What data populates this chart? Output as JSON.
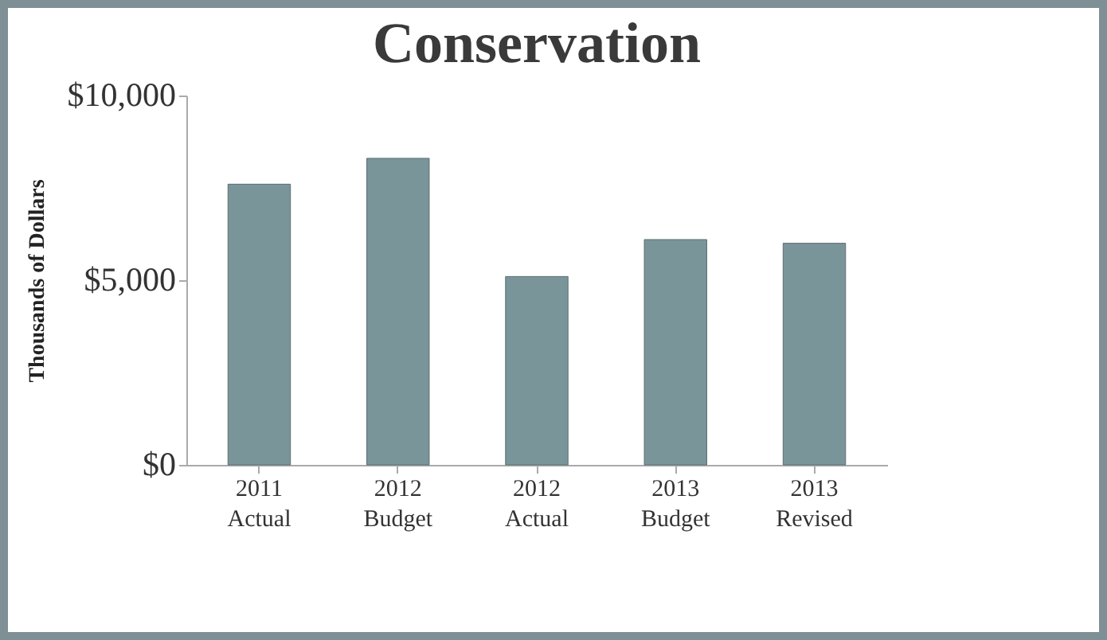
{
  "chart_data": {
    "type": "bar",
    "title": "Conservation",
    "ylabel": "Thousands  of Dollars",
    "categories": [
      "2011\nActual",
      "2012\nBudget",
      "2012\nActual",
      "2013\nBudget",
      "2013\nRevised"
    ],
    "values": [
      7600,
      8300,
      5100,
      6100,
      6000
    ],
    "color": "#7a9599",
    "ylim": [
      0,
      10000
    ],
    "yticks": [
      {
        "value": 0,
        "label": "$0"
      },
      {
        "value": 5000,
        "label": "$5,000"
      },
      {
        "value": 10000,
        "label": "$10,000"
      }
    ],
    "grid": false
  }
}
